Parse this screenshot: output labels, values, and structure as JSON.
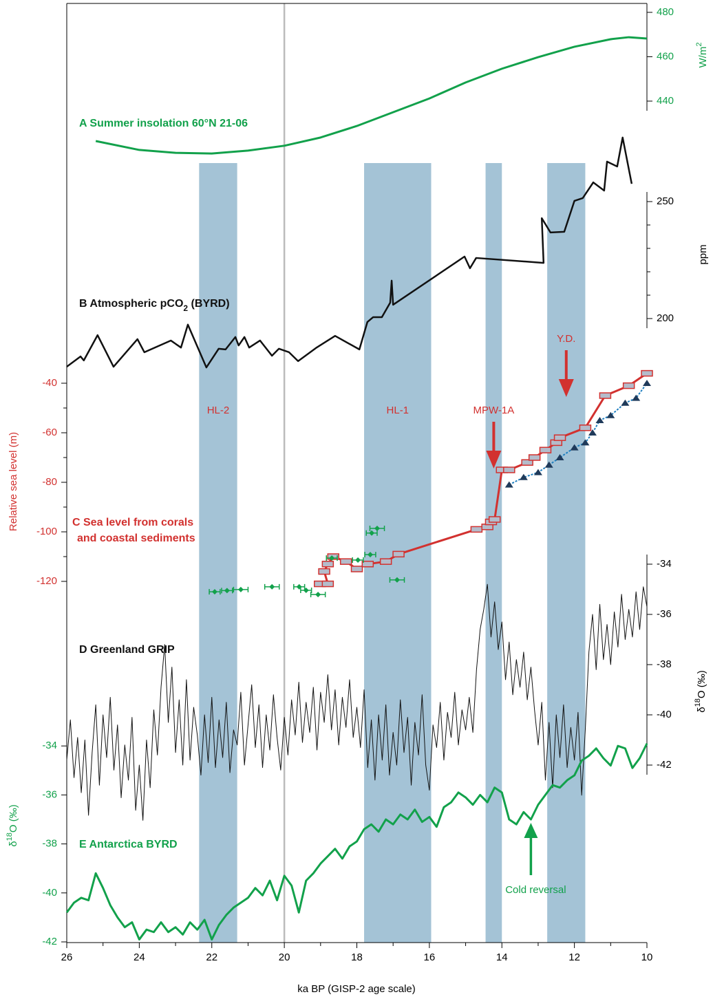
{
  "shared": {
    "xlim": [
      26,
      10
    ],
    "xticks": [
      26,
      24,
      22,
      20,
      18,
      16,
      14,
      12,
      10
    ],
    "minor_xticks": [
      25,
      23,
      21,
      19,
      17,
      15,
      13,
      11
    ],
    "xlabel": "ka BP (GISP-2 age scale)",
    "vline": 20,
    "bands": [
      {
        "label": "HL-2",
        "start": 22.35,
        "end": 21.3,
        "color": "#a4c3d6"
      },
      {
        "label": "HL-1",
        "start": 17.8,
        "end": 15.95,
        "color": "#a4c3d6"
      },
      {
        "label": "MPW-1A",
        "start": 14.45,
        "end": 14.0,
        "color": "#a4c3d6",
        "arrow": true
      },
      {
        "label": "Y.D.",
        "start": 12.75,
        "end": 11.7,
        "color": "#a4c3d6",
        "arrow": true
      }
    ],
    "band_label_color": "#d2312f"
  },
  "chart_data": [
    {
      "type": "line",
      "label": [
        "A Summer insolation 60°N 21-06"
      ],
      "label_shift": "none",
      "ylabel": [
        "W/m",
        "2"
      ],
      "axis_side": "right",
      "axis_color": "#12a14b",
      "ylim": [
        415,
        482
      ],
      "yticks": [
        440,
        460,
        480
      ],
      "series": [
        {
          "color": "#12a14b",
          "width": 3,
          "x": [
            25.2,
            24,
            23,
            22,
            21,
            20,
            19,
            18,
            17,
            16,
            15,
            14,
            13,
            12,
            11,
            10.5,
            10
          ],
          "values": [
            422.0,
            418.0,
            416.7,
            416.4,
            417.7,
            419.9,
            423.6,
            428.8,
            435.0,
            441.2,
            448.4,
            454.6,
            459.8,
            464.5,
            467.9,
            468.8,
            468.2
          ]
        }
      ]
    },
    {
      "type": "line",
      "label": [
        "B Atmospheric pCO",
        "2",
        " (BYRD)"
      ],
      "label_shift": "sub",
      "ylabel": [
        "ppm"
      ],
      "axis_side": "right",
      "axis_color": "#000000",
      "ylim": [
        175,
        280
      ],
      "yticks": [
        200,
        250
      ],
      "minor_yticks": [
        210,
        220,
        230,
        240
      ],
      "series": [
        {
          "color": "#111111",
          "width": 2.5,
          "x": [
            26,
            25.62,
            25.53,
            25.15,
            24.71,
            24.05,
            23.86,
            23.13,
            22.85,
            22.66,
            22.15,
            21.81,
            21.62,
            21.35,
            21.26,
            21.1,
            20.97,
            20.67,
            20.34,
            20.15,
            19.87,
            19.62,
            19.11,
            18.6,
            17.93,
            17.71,
            17.55,
            17.31,
            17.08,
            17.04,
            17.0,
            15.03,
            14.88,
            14.71,
            12.85,
            12.9,
            12.66,
            12.28,
            12.0,
            11.77,
            11.48,
            11.18,
            11.1,
            10.82,
            10.67,
            10.42
          ],
          "values": [
            179.4,
            183.8,
            182.1,
            192.9,
            179.4,
            191.2,
            185.6,
            190.6,
            187.6,
            197.4,
            179.1,
            187.1,
            186.8,
            192.1,
            188.5,
            192.1,
            187.6,
            190.6,
            184.1,
            187.1,
            185.6,
            181.8,
            187.6,
            192.6,
            186.8,
            198.5,
            200.6,
            200.6,
            206.8,
            216.2,
            205.9,
            226.5,
            221.5,
            225.9,
            223.8,
            242.9,
            236.8,
            237.1,
            250.3,
            251.5,
            258.2,
            254.7,
            267.1,
            265.0,
            277.4,
            257.6
          ]
        }
      ]
    },
    {
      "type": "line",
      "label": [
        "C Sea level from corals",
        "and coastal sediments"
      ],
      "label_shift": "lines",
      "ylabel": [
        "Relative sea level (m)"
      ],
      "axis_side": "left",
      "axis_color": "#d2312f",
      "ylim": [
        -130,
        -30
      ],
      "yticks": [
        -120,
        -100,
        -80,
        -60,
        -40
      ],
      "minor_yticks": [
        -110,
        -90,
        -70,
        -50
      ],
      "series": [
        {
          "color": "#d2312f",
          "width": 3,
          "marker": "box",
          "x": [
            19.02,
            18.8,
            18.9,
            18.8,
            18.65,
            18.3,
            18.0,
            17.7,
            17.2,
            16.85,
            14.7,
            14.4,
            14.3,
            14.2,
            14.0,
            13.8,
            13.3,
            13.1,
            12.8,
            12.5,
            12.4,
            11.7,
            11.15,
            10.5,
            10.0
          ],
          "values": [
            -121,
            -121,
            -116,
            -113,
            -110,
            -112,
            -115,
            -113,
            -112,
            -109,
            -99,
            -98,
            -96,
            -95,
            -75,
            -75,
            -72,
            -70,
            -67,
            -64,
            -62,
            -58,
            -45,
            -41,
            -36
          ]
        },
        {
          "color": "#1f7fc0",
          "width": 2,
          "dash": "3 2",
          "marker": "triangle",
          "marker_color": "#1f3a5a",
          "x": [
            13.8,
            13.4,
            13.0,
            12.7,
            12.4,
            12.0,
            11.7,
            11.5,
            11.3,
            11.0,
            10.6,
            10.3,
            10.0
          ],
          "values": [
            -81,
            -78,
            -76,
            -73,
            -70,
            -66,
            -64,
            -60,
            -55,
            -53,
            -48,
            -46,
            -40
          ]
        },
        {
          "color": "#12a14b",
          "marker": "diamond",
          "line": false,
          "x": [
            21.92,
            21.58,
            21.2,
            20.34,
            19.59,
            19.4,
            19.07,
            18.69,
            17.97,
            17.63,
            17.59,
            17.44,
            16.89
          ],
          "values": [
            -124.2,
            -123.7,
            -123.3,
            -122.2,
            -122.2,
            -123.6,
            -125.3,
            -110.6,
            -111.4,
            -109.2,
            -100.5,
            -98.6,
            -119.4
          ],
          "xerr": [
            0.15,
            0.15,
            0.2,
            0.2,
            0.15,
            0.15,
            0.2,
            0.15,
            0.15,
            0.15,
            0.15,
            0.2,
            0.2
          ]
        }
      ]
    },
    {
      "type": "line",
      "label": [
        "D Greenland GRIP"
      ],
      "label_shift": "none",
      "ylabel": [
        "δ",
        "18",
        "O (‰)"
      ],
      "axis_side": "right",
      "axis_color": "#000000",
      "ylim": [
        -45,
        -33
      ],
      "yticks": [
        -34,
        -36,
        -38,
        -40,
        -42
      ],
      "series": [
        {
          "color": "#111111",
          "width": 1,
          "x": [
            26,
            25.9,
            25.8,
            25.7,
            25.6,
            25.5,
            25.4,
            25.3,
            25.2,
            25.1,
            25,
            24.9,
            24.8,
            24.7,
            24.6,
            24.5,
            24.4,
            24.3,
            24.2,
            24.1,
            24,
            23.9,
            23.8,
            23.7,
            23.6,
            23.5,
            23.4,
            23.3,
            23.2,
            23.1,
            23,
            22.9,
            22.8,
            22.7,
            22.6,
            22.5,
            22.4,
            22.3,
            22.2,
            22.1,
            22,
            21.9,
            21.8,
            21.7,
            21.6,
            21.5,
            21.4,
            21.3,
            21.2,
            21.1,
            21,
            20.9,
            20.8,
            20.7,
            20.6,
            20.5,
            20.4,
            20.3,
            20.2,
            20.1,
            20,
            19.9,
            19.8,
            19.7,
            19.6,
            19.5,
            19.4,
            19.3,
            19.2,
            19.1,
            19,
            18.9,
            18.8,
            18.7,
            18.6,
            18.5,
            18.4,
            18.3,
            18.2,
            18.1,
            18,
            17.9,
            17.8,
            17.7,
            17.6,
            17.5,
            17.4,
            17.3,
            17.2,
            17.1,
            17,
            16.9,
            16.8,
            16.7,
            16.6,
            16.5,
            16.4,
            16.3,
            16.2,
            16.1,
            16,
            15.9,
            15.8,
            15.7,
            15.6,
            15.5,
            15.4,
            15.3,
            15.2,
            15.1,
            15,
            14.9,
            14.8,
            14.7,
            14.6,
            14.5,
            14.4,
            14.3,
            14.2,
            14.1,
            14,
            13.9,
            13.8,
            13.7,
            13.6,
            13.5,
            13.4,
            13.3,
            13.2,
            13.1,
            13,
            12.9,
            12.8,
            12.7,
            12.6,
            12.5,
            12.4,
            12.3,
            12.2,
            12.1,
            12,
            11.9,
            11.8,
            11.7,
            11.6,
            11.5,
            11.4,
            11.3,
            11.2,
            11.1,
            11,
            10.9,
            10.8,
            10.7,
            10.6,
            10.5,
            10.4,
            10.3,
            10.2,
            10.1,
            10
          ],
          "values": [
            -41.8,
            -40.2,
            -42.5,
            -40.9,
            -43.1,
            -41.0,
            -44.0,
            -41.5,
            -39.6,
            -42.8,
            -40.0,
            -41.7,
            -39.3,
            -42.2,
            -40.4,
            -43.3,
            -41.2,
            -42.6,
            -40.1,
            -43.8,
            -42.0,
            -44.2,
            -41.0,
            -42.9,
            -39.8,
            -41.6,
            -38.9,
            -37.2,
            -40.3,
            -38.1,
            -41.5,
            -39.4,
            -42.0,
            -38.6,
            -41.8,
            -39.7,
            -40.8,
            -42.4,
            -40.0,
            -41.9,
            -39.3,
            -42.1,
            -40.2,
            -41.7,
            -39.5,
            -42.3,
            -40.6,
            -41.2,
            -39.1,
            -42.0,
            -40.4,
            -38.8,
            -41.3,
            -39.6,
            -42.1,
            -40.0,
            -41.4,
            -39.2,
            -40.9,
            -42.2,
            -40.1,
            -41.6,
            -39.4,
            -40.8,
            -38.7,
            -41.1,
            -39.5,
            -40.7,
            -38.9,
            -41.4,
            -39.1,
            -40.3,
            -38.4,
            -40.6,
            -39.0,
            -41.2,
            -39.3,
            -40.5,
            -38.6,
            -40.9,
            -39.7,
            -41.3,
            -39.0,
            -42.1,
            -40.2,
            -42.6,
            -40.0,
            -41.8,
            -39.6,
            -42.4,
            -40.7,
            -42.0,
            -39.4,
            -41.5,
            -40.1,
            -42.8,
            -40.3,
            -41.6,
            -39.2,
            -42.0,
            -43.0,
            -40.4,
            -41.3,
            -39.5,
            -41.8,
            -39.9,
            -40.9,
            -39.1,
            -41.2,
            -39.8,
            -40.6,
            -39.3,
            -40.7,
            -38.2,
            -36.6,
            -35.8,
            -34.8,
            -36.9,
            -35.5,
            -37.4,
            -36.3,
            -38.6,
            -37.1,
            -39.2,
            -37.8,
            -38.9,
            -37.5,
            -39.4,
            -38.1,
            -39.8,
            -41.2,
            -39.5,
            -42.6,
            -40.3,
            -42.9,
            -40.0,
            -41.7,
            -39.6,
            -42.1,
            -40.5,
            -41.8,
            -39.9,
            -43.2,
            -40.6,
            -37.5,
            -36.0,
            -38.2,
            -35.6,
            -37.8,
            -36.4,
            -38.0,
            -35.9,
            -37.3,
            -35.2,
            -37.0,
            -35.8,
            -36.9,
            -35.1,
            -36.6,
            -34.9,
            -35.7
          ]
        }
      ]
    },
    {
      "type": "line",
      "label": [
        "E Antarctica BYRD"
      ],
      "label_shift": "none",
      "ylabel": [
        "δ",
        "18",
        "O (‰)"
      ],
      "axis_side": "left",
      "axis_color": "#12a14b",
      "ylim": [
        -42,
        -33
      ],
      "yticks": [
        -34,
        -36,
        -38,
        -40,
        -42
      ],
      "annotation": {
        "text": "Cold reversal",
        "x": 13.2
      },
      "series": [
        {
          "color": "#12a14b",
          "width": 3,
          "x": [
            26,
            25.8,
            25.6,
            25.4,
            25.2,
            25,
            24.8,
            24.6,
            24.4,
            24.2,
            24,
            23.8,
            23.6,
            23.4,
            23.2,
            23,
            22.8,
            22.6,
            22.4,
            22.2,
            22,
            21.8,
            21.6,
            21.4,
            21.2,
            21,
            20.8,
            20.6,
            20.4,
            20.2,
            20,
            19.8,
            19.6,
            19.4,
            19.2,
            19,
            18.8,
            18.6,
            18.4,
            18.2,
            18,
            17.8,
            17.6,
            17.4,
            17.2,
            17,
            16.8,
            16.6,
            16.4,
            16.2,
            16,
            15.8,
            15.6,
            15.4,
            15.2,
            15,
            14.8,
            14.6,
            14.4,
            14.2,
            14,
            13.8,
            13.6,
            13.4,
            13.2,
            13,
            12.8,
            12.6,
            12.4,
            12.2,
            12,
            11.8,
            11.6,
            11.4,
            11.2,
            11,
            10.8,
            10.6,
            10.4,
            10.2,
            10
          ],
          "values": [
            -40.8,
            -40.4,
            -40.2,
            -40.3,
            -39.2,
            -39.8,
            -40.5,
            -41.0,
            -41.4,
            -41.2,
            -41.9,
            -41.5,
            -41.6,
            -41.2,
            -41.6,
            -41.4,
            -41.7,
            -41.2,
            -41.5,
            -41.1,
            -41.9,
            -41.3,
            -40.9,
            -40.6,
            -40.4,
            -40.2,
            -39.8,
            -40.1,
            -39.5,
            -40.3,
            -39.3,
            -39.7,
            -40.8,
            -39.5,
            -39.2,
            -38.8,
            -38.5,
            -38.2,
            -38.6,
            -38.1,
            -37.9,
            -37.4,
            -37.2,
            -37.5,
            -37.0,
            -37.2,
            -36.8,
            -37.0,
            -36.6,
            -37.1,
            -36.9,
            -37.3,
            -36.5,
            -36.3,
            -35.9,
            -36.1,
            -36.4,
            -36.0,
            -36.3,
            -35.7,
            -35.9,
            -37.0,
            -37.2,
            -36.7,
            -37.0,
            -36.4,
            -36.0,
            -35.6,
            -35.7,
            -35.4,
            -35.2,
            -34.6,
            -34.4,
            -34.1,
            -34.5,
            -34.8,
            -34.0,
            -34.1,
            -34.9,
            -34.5,
            -33.9
          ]
        }
      ]
    }
  ]
}
